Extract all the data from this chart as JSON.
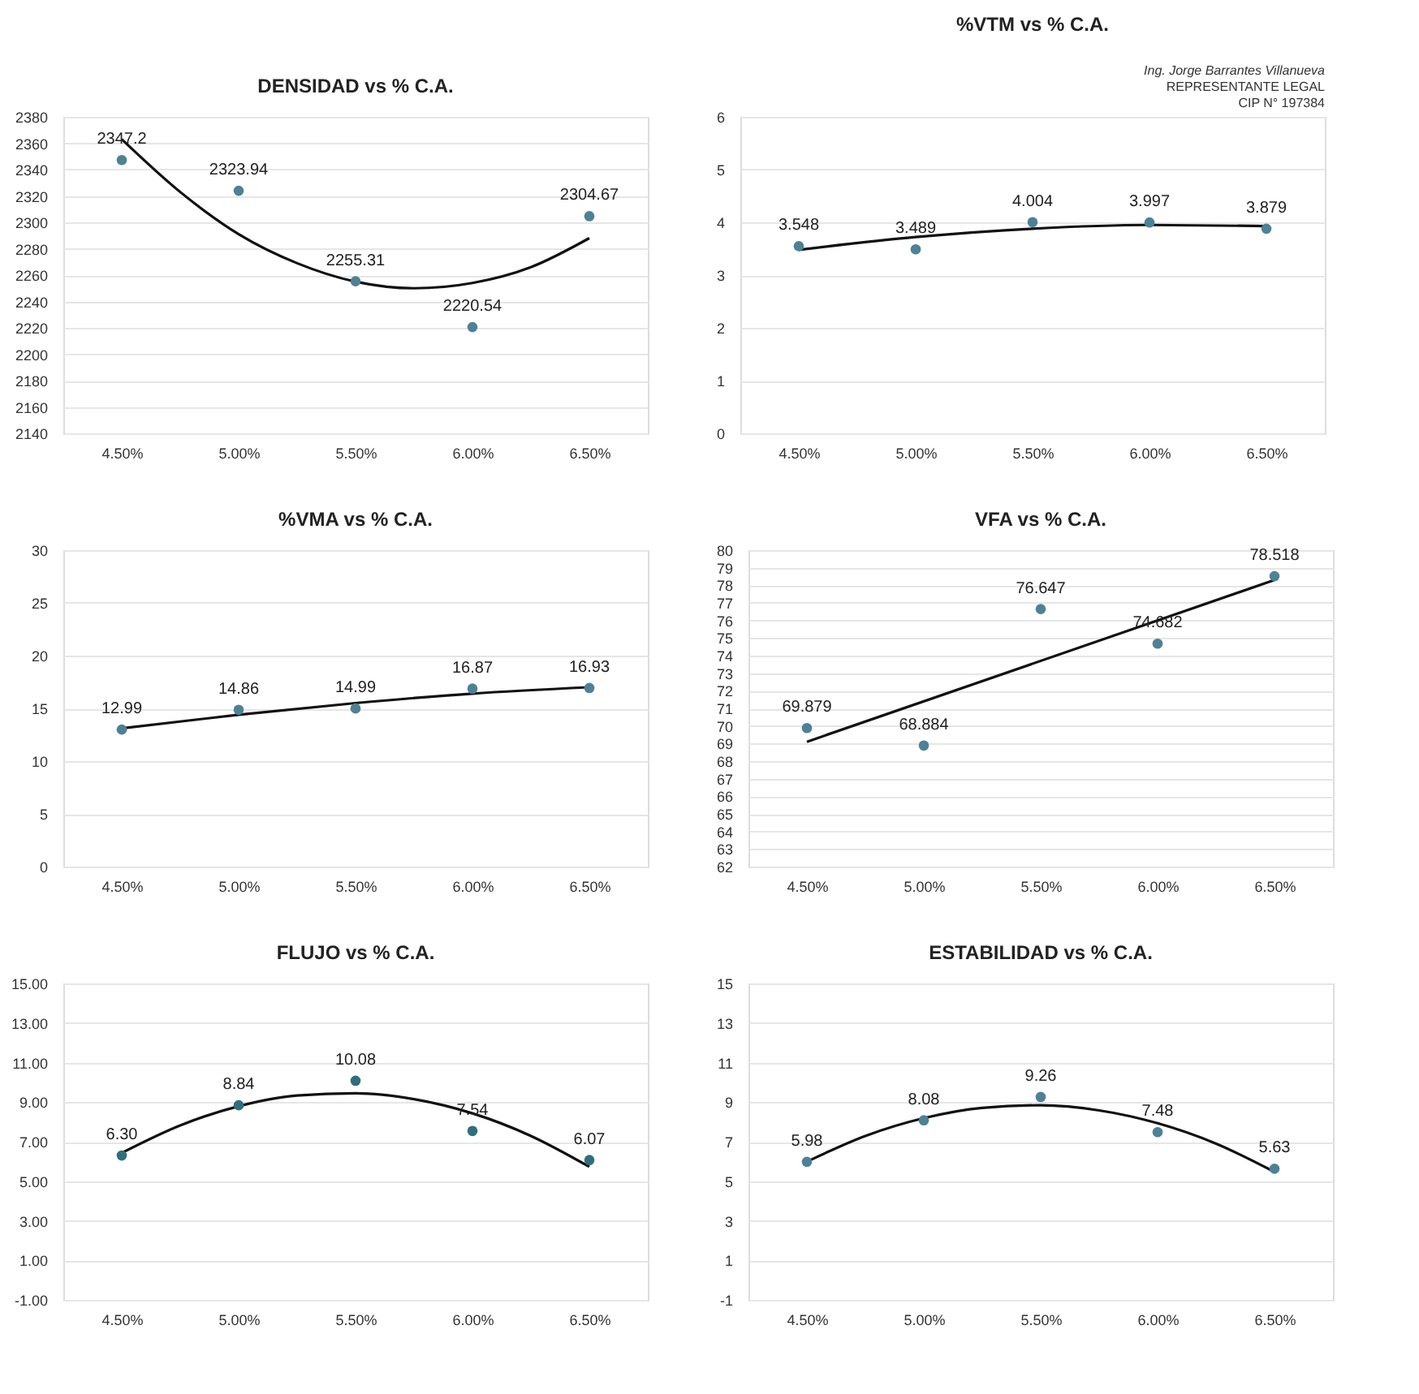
{
  "chart_data": [
    {
      "type": "scatter",
      "title": "DENSIDAD vs % C.A.",
      "xlim": [
        4.25,
        6.75
      ],
      "xticks": [
        {
          "value": 4.5,
          "label": "4.50%"
        },
        {
          "value": 5.0,
          "label": "5.00%"
        },
        {
          "value": 5.5,
          "label": "5.50%"
        },
        {
          "value": 6.0,
          "label": "6.00%"
        },
        {
          "value": 6.5,
          "label": "6.50%"
        }
      ],
      "ylim": [
        2140,
        2380
      ],
      "yticks": [
        2140,
        2160,
        2180,
        2200,
        2220,
        2240,
        2260,
        2280,
        2300,
        2320,
        2340,
        2360,
        2380
      ],
      "grid": "y",
      "series": [
        {
          "marker": "circle",
          "color": "#4d8196",
          "x": [
            4.5,
            5.0,
            5.5,
            6.0,
            6.5
          ],
          "values": [
            2347.2,
            2323.94,
            2255.31,
            2220.54,
            2304.67
          ],
          "value_labels": [
            "2347.2",
            "2323.94",
            "2255.31",
            "2220.54",
            "2304.67"
          ]
        },
        {
          "type": "line",
          "marker": "none",
          "color": "#111111",
          "line_style": "solid",
          "x": [
            4.5,
            4.75,
            5.0,
            5.25,
            5.5,
            5.75,
            6.0,
            6.25,
            6.5
          ],
          "values": [
            2363,
            2323,
            2291,
            2269,
            2255,
            2250,
            2254,
            2266,
            2288
          ]
        }
      ]
    },
    {
      "type": "scatter",
      "title": "%VTM vs % C.A.",
      "xlim": [
        4.25,
        6.75
      ],
      "xticks": [
        {
          "value": 4.5,
          "label": "4.50%"
        },
        {
          "value": 5.0,
          "label": "5.00%"
        },
        {
          "value": 5.5,
          "label": "5.50%"
        },
        {
          "value": 6.0,
          "label": "6.00%"
        },
        {
          "value": 6.5,
          "label": "6.50%"
        }
      ],
      "ylim": [
        0,
        6
      ],
      "yticks": [
        0,
        1,
        2,
        3,
        4,
        5,
        6
      ],
      "grid": "y",
      "annotations": [
        "Ing. Jorge Barrantes Villanueva",
        "REPRESENTANTE LEGAL",
        "CIP N° 197384"
      ],
      "series": [
        {
          "marker": "circle",
          "color": "#4d8196",
          "x": [
            4.5,
            5.0,
            5.5,
            6.0,
            6.5
          ],
          "values": [
            3.548,
            3.489,
            4.004,
            3.997,
            3.879
          ],
          "value_labels": [
            "3.548",
            "3.489",
            "4.004",
            "3.997",
            "3.879"
          ]
        },
        {
          "type": "line",
          "marker": "none",
          "color": "#111111",
          "line_style": "solid",
          "x": [
            4.5,
            5.0,
            5.5,
            6.0,
            6.5
          ],
          "values": [
            3.48,
            3.72,
            3.88,
            3.95,
            3.93
          ]
        }
      ]
    },
    {
      "type": "scatter",
      "title": "%VMA vs % C.A.",
      "xlim": [
        4.25,
        6.75
      ],
      "xticks": [
        {
          "value": 4.5,
          "label": "4.50%"
        },
        {
          "value": 5.0,
          "label": "5.00%"
        },
        {
          "value": 5.5,
          "label": "5.50%"
        },
        {
          "value": 6.0,
          "label": "6.00%"
        },
        {
          "value": 6.5,
          "label": "6.50%"
        }
      ],
      "ylim": [
        0,
        30
      ],
      "yticks": [
        0,
        5,
        10,
        15,
        20,
        25,
        30
      ],
      "grid": "y",
      "series": [
        {
          "marker": "circle",
          "color": "#4d8196",
          "x": [
            4.5,
            5.0,
            5.5,
            6.0,
            6.5
          ],
          "values": [
            12.99,
            14.86,
            14.99,
            16.87,
            16.93
          ],
          "value_labels": [
            "12.99",
            "14.86",
            "14.99",
            "16.87",
            "16.93"
          ]
        },
        {
          "type": "line",
          "marker": "none",
          "color": "#111111",
          "line_style": "solid",
          "x": [
            4.5,
            5.0,
            5.5,
            6.0,
            6.5
          ],
          "values": [
            13.1,
            14.4,
            15.5,
            16.4,
            17.0
          ]
        }
      ]
    },
    {
      "type": "scatter",
      "title": "VFA vs % C.A.",
      "xlim": [
        4.25,
        6.75
      ],
      "xticks": [
        {
          "value": 4.5,
          "label": "4.50%"
        },
        {
          "value": 5.0,
          "label": "5.00%"
        },
        {
          "value": 5.5,
          "label": "5.50%"
        },
        {
          "value": 6.0,
          "label": "6.00%"
        },
        {
          "value": 6.5,
          "label": "6.50%"
        }
      ],
      "ylim": [
        62,
        80
      ],
      "yticks": [
        62,
        63,
        64,
        65,
        66,
        67,
        68,
        69,
        70,
        71,
        72,
        73,
        74,
        75,
        76,
        77,
        78,
        79,
        80
      ],
      "grid": "y",
      "series": [
        {
          "marker": "circle",
          "color": "#4d8196",
          "x": [
            4.5,
            5.0,
            5.5,
            6.0,
            6.5
          ],
          "values": [
            69.879,
            68.884,
            76.647,
            74.682,
            78.518
          ],
          "value_labels": [
            "69.879",
            "68.884",
            "76.647",
            "74.682",
            "78.518"
          ]
        },
        {
          "type": "line",
          "marker": "none",
          "color": "#111111",
          "line_style": "solid",
          "x": [
            4.5,
            6.5
          ],
          "values": [
            69.1,
            78.3
          ]
        }
      ]
    },
    {
      "type": "scatter",
      "title": "FLUJO vs % C.A.",
      "xlim": [
        4.25,
        6.75
      ],
      "xticks": [
        {
          "value": 4.5,
          "label": "4.50%"
        },
        {
          "value": 5.0,
          "label": "5.00%"
        },
        {
          "value": 5.5,
          "label": "5.50%"
        },
        {
          "value": 6.0,
          "label": "6.00%"
        },
        {
          "value": 6.5,
          "label": "6.50%"
        }
      ],
      "ylim": [
        -1,
        15
      ],
      "yticks": [
        {
          "value": -1,
          "label": "-1.00"
        },
        {
          "value": 1,
          "label": "1.00"
        },
        {
          "value": 3,
          "label": "3.00"
        },
        {
          "value": 5,
          "label": "5.00"
        },
        {
          "value": 7,
          "label": "7.00"
        },
        {
          "value": 9,
          "label": "9.00"
        },
        {
          "value": 11,
          "label": "11.00"
        },
        {
          "value": 13,
          "label": "13.00"
        },
        {
          "value": 15,
          "label": "15.00"
        }
      ],
      "grid": "y",
      "series": [
        {
          "marker": "circle",
          "color": "#2f6f7c",
          "x": [
            4.5,
            5.0,
            5.5,
            6.0,
            6.5
          ],
          "values": [
            6.3,
            8.84,
            10.08,
            7.54,
            6.07
          ],
          "value_labels": [
            "6.30",
            "8.84",
            "10.08",
            "7.54",
            "6.07"
          ]
        },
        {
          "type": "line",
          "marker": "none",
          "color": "#111111",
          "line_style": "solid",
          "x": [
            4.5,
            4.75,
            5.0,
            5.25,
            5.5,
            5.75,
            6.0,
            6.25,
            6.5
          ],
          "values": [
            6.43,
            7.82,
            8.79,
            9.33,
            9.45,
            9.15,
            8.43,
            7.29,
            5.73
          ]
        }
      ]
    },
    {
      "type": "scatter",
      "title": "ESTABILIDAD vs % C.A.",
      "xlim": [
        4.25,
        6.75
      ],
      "xticks": [
        {
          "value": 4.5,
          "label": "4.50%"
        },
        {
          "value": 5.0,
          "label": "5.00%"
        },
        {
          "value": 5.5,
          "label": "5.50%"
        },
        {
          "value": 6.0,
          "label": "6.00%"
        },
        {
          "value": 6.5,
          "label": "6.50%"
        }
      ],
      "ylim": [
        -1,
        15
      ],
      "yticks": [
        -1,
        1,
        3,
        5,
        7,
        9,
        11,
        13,
        15
      ],
      "grid": "y",
      "series": [
        {
          "marker": "circle",
          "color": "#4d8196",
          "x": [
            4.5,
            5.0,
            5.5,
            6.0,
            6.5
          ],
          "values": [
            5.98,
            8.08,
            9.26,
            7.48,
            5.63
          ],
          "value_labels": [
            "5.98",
            "8.08",
            "9.26",
            "7.48",
            "5.63"
          ]
        },
        {
          "type": "line",
          "marker": "none",
          "color": "#111111",
          "line_style": "solid",
          "x": [
            4.5,
            4.75,
            5.0,
            5.25,
            5.5,
            5.75,
            6.0,
            6.25,
            6.5
          ],
          "values": [
            5.99,
            7.29,
            8.19,
            8.71,
            8.84,
            8.58,
            7.93,
            6.9,
            5.47
          ]
        }
      ]
    }
  ]
}
